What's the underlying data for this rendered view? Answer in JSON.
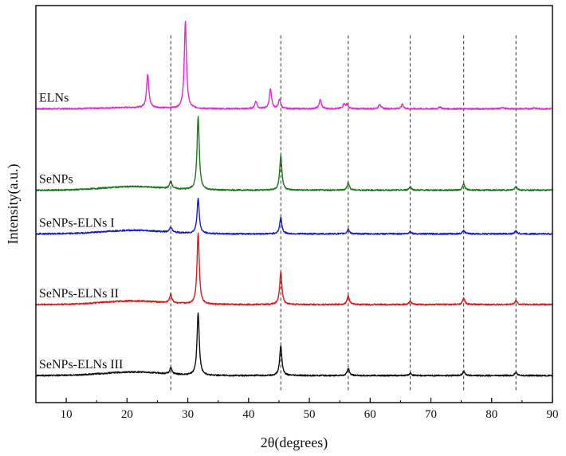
{
  "chart_data": {
    "type": "line",
    "title": "",
    "xlabel": "2θ(degrees)",
    "ylabel": "Intensity(a.u.)",
    "xlim": [
      5,
      90
    ],
    "ylim": [
      0,
      100
    ],
    "x_ticks": [
      10,
      20,
      30,
      40,
      50,
      60,
      70,
      80,
      90
    ],
    "y_ticks_shown": false,
    "grid": false,
    "reference_lines": [
      27.2,
      45.3,
      56.4,
      66.6,
      75.4,
      84.0
    ],
    "series": [
      {
        "name": "ELNs",
        "label": "ELNs",
        "color": "#ee22dd",
        "baseline": 74.0,
        "peaks": [
          [
            23.4,
            8.5
          ],
          [
            29.6,
            21.8
          ],
          [
            41.2,
            1.9
          ],
          [
            43.6,
            5.0
          ],
          [
            45.1,
            2.3
          ],
          [
            51.8,
            2.3
          ],
          [
            55.7,
            1.2
          ],
          [
            56.2,
            1.0
          ],
          [
            61.6,
            1.2
          ],
          [
            65.3,
            1.1
          ],
          [
            71.5,
            0.5
          ],
          [
            81.8,
            0.4
          ],
          [
            87.0,
            0.3
          ]
        ]
      },
      {
        "name": "SeNPs",
        "label": "SeNPs",
        "color": "#1a7a1a",
        "baseline": 53.5,
        "peaks": [
          [
            27.2,
            2.0
          ],
          [
            31.7,
            18.4
          ],
          [
            45.3,
            8.7
          ],
          [
            56.4,
            1.9
          ],
          [
            66.6,
            0.9
          ],
          [
            75.4,
            1.6
          ],
          [
            84.0,
            1.0
          ]
        ]
      },
      {
        "name": "SeNPs-ELNs I",
        "label": "SeNPs-ELNs I",
        "color": "#1a1ad0",
        "baseline": 42.5,
        "peaks": [
          [
            27.2,
            1.4
          ],
          [
            31.7,
            8.8
          ],
          [
            45.3,
            4.1
          ],
          [
            56.4,
            1.2
          ],
          [
            66.6,
            0.6
          ],
          [
            75.4,
            0.9
          ],
          [
            84.0,
            0.7
          ]
        ]
      },
      {
        "name": "SeNPs-ELNs II",
        "label": "SeNPs-ELNs II",
        "color": "#e01818",
        "baseline": 24.7,
        "peaks": [
          [
            27.2,
            2.2
          ],
          [
            31.7,
            17.9
          ],
          [
            45.3,
            8.2
          ],
          [
            56.4,
            2.2
          ],
          [
            66.6,
            0.8
          ],
          [
            75.4,
            1.6
          ],
          [
            84.0,
            1.0
          ]
        ]
      },
      {
        "name": "SeNPs-ELNs III",
        "label": "SeNPs-ELNs III",
        "color": "#111111",
        "baseline": 6.8,
        "peaks": [
          [
            27.2,
            1.6
          ],
          [
            31.7,
            15.7
          ],
          [
            45.3,
            7.5
          ],
          [
            56.4,
            1.8
          ],
          [
            66.6,
            0.6
          ],
          [
            75.4,
            1.1
          ],
          [
            84.0,
            0.8
          ]
        ]
      }
    ]
  }
}
